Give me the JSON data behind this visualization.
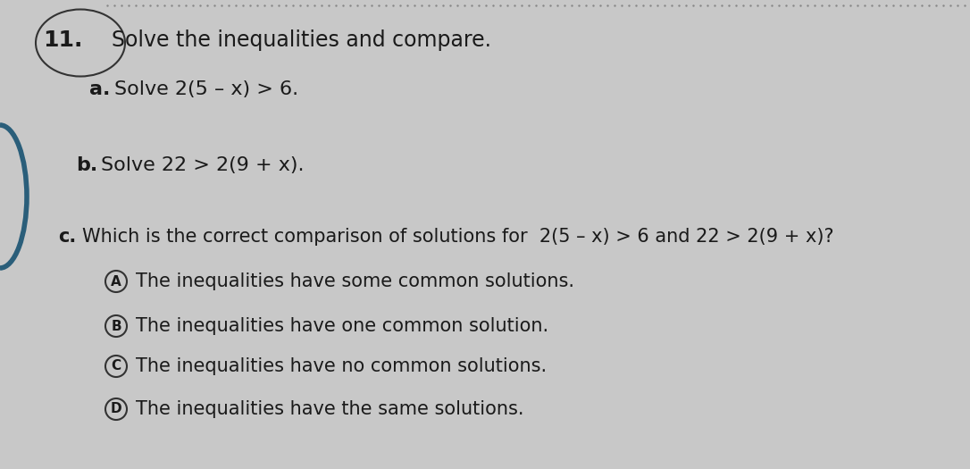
{
  "background_color": "#c8c8c8",
  "title_number": "11.",
  "title_text": "Solve the inequalities and compare.",
  "part_a_label": "a.",
  "part_a_text": "Solve 2(5 – x) > 6.",
  "part_b_label": "b.",
  "part_b_text": "Solve 22 > 2(9 + x).",
  "part_c_label": "c.",
  "part_c_question": "Which is the correct comparison of solutions for",
  "part_c_formula": "  2(5 – x) > 6 and 22 > 2(9 + x)?",
  "option_A_circle": "A",
  "option_A_text": "The inequalities have some common solutions.",
  "option_B_circle": "B",
  "option_B_text": "The inequalities have one common solution.",
  "option_C_circle": "C",
  "option_C_text": "The inequalities have no common solutions.",
  "option_D_circle": "D",
  "option_D_text": "The inequalities have the same solutions.",
  "text_color": "#1a1a1a",
  "circle_color": "#333333",
  "arc_color": "#2a5e7a",
  "dot_color": "#888888"
}
